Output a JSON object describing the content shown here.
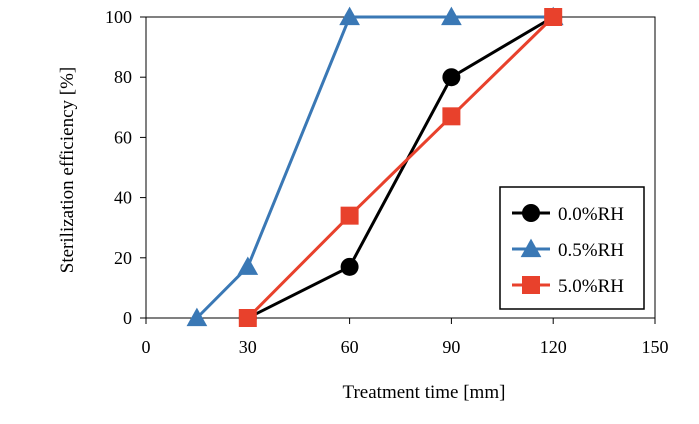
{
  "chart_data": {
    "type": "line",
    "title": "",
    "xlabel": "Treatment time [mm]",
    "ylabel": "Sterilization efficiency [%]",
    "xlim": [
      0,
      150
    ],
    "ylim": [
      0,
      100
    ],
    "xticks": [
      0,
      30,
      60,
      90,
      120,
      150
    ],
    "yticks": [
      0,
      20,
      40,
      60,
      80,
      100
    ],
    "grid": false,
    "legend_position": "lower-right",
    "series": [
      {
        "name": "0.0%RH",
        "color": "#000000",
        "marker": "circle",
        "x": [
          30,
          60,
          90,
          120
        ],
        "y": [
          0,
          17,
          80,
          100
        ]
      },
      {
        "name": "0.5%RH",
        "color": "#3a78b5",
        "marker": "triangle",
        "x": [
          15,
          30,
          60,
          90,
          120
        ],
        "y": [
          0,
          17,
          100,
          100,
          100
        ]
      },
      {
        "name": "5.0%RH",
        "color": "#e8412c",
        "marker": "square",
        "x": [
          30,
          60,
          90,
          120
        ],
        "y": [
          0,
          34,
          67,
          100
        ]
      }
    ]
  }
}
